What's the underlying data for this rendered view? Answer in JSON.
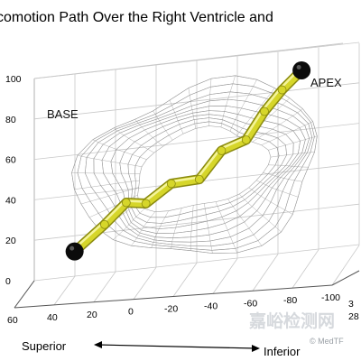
{
  "chart_data": {
    "type": "3d-line",
    "title": "comotion Path Over the Right Ventricle and",
    "annotations": {
      "base": "BASE",
      "apex": "APEX"
    },
    "axes": {
      "z_ticks": [
        "100",
        "80",
        "60",
        "40",
        "20",
        "0"
      ],
      "x_ticks": [
        "60",
        "40",
        "20",
        "0",
        "-20",
        "-40",
        "-60",
        "-80",
        "-100"
      ],
      "y_ticks": [
        "3",
        "28"
      ],
      "x_direction_label_left": "Superior",
      "x_direction_label_right": "Inferior",
      "x_direction_arrow": "←————→"
    },
    "series": [
      {
        "type": "path",
        "color": "#d6d62a",
        "points": [
          {
            "x": 32,
            "z": 23
          },
          {
            "x": 18,
            "z": 34
          },
          {
            "x": 8,
            "z": 43
          },
          {
            "x": -2,
            "z": 42
          },
          {
            "x": -14,
            "z": 50
          },
          {
            "x": -28,
            "z": 51
          },
          {
            "x": -38,
            "z": 63
          },
          {
            "x": -50,
            "z": 67
          },
          {
            "x": -58,
            "z": 79
          },
          {
            "x": -66,
            "z": 88
          },
          {
            "x": -75,
            "z": 96
          }
        ]
      }
    ],
    "markers": [
      {
        "name": "base-marker",
        "x": 32,
        "z": 23
      },
      {
        "name": "apex-marker",
        "x": -75,
        "z": 96
      }
    ],
    "mesh": "wireframe right ventricle surface",
    "grid": true
  },
  "watermark": {
    "cn_text": "嘉峪检测网",
    "credit": "© MedTF"
  },
  "colors": {
    "path": "#d6d62a",
    "path_edge": "#8a8a10",
    "mesh": "#8f8f8f",
    "grid": "#c8c8c8",
    "marker": "#0b0b0b"
  }
}
